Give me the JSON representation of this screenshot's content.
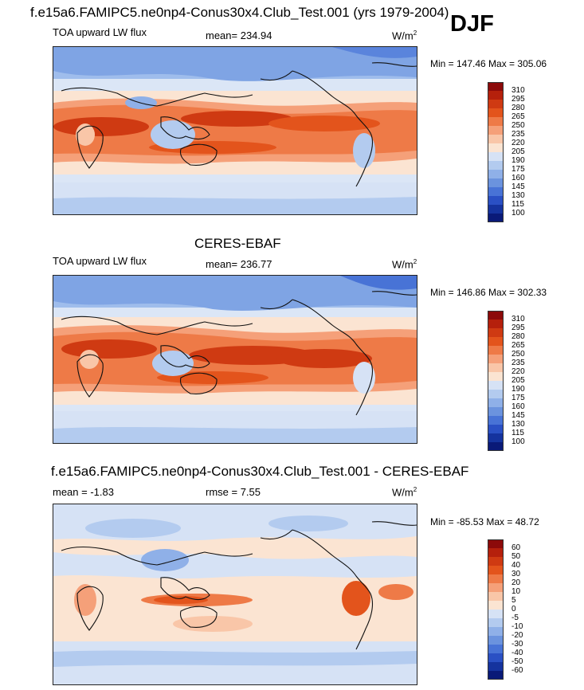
{
  "header": {
    "title": "f.e15a6.FAMIPC5.ne0np4-Conus30x4.Club_Test.001 (yrs 1979-2004)",
    "season": "DJF"
  },
  "panels": [
    {
      "id": "model",
      "title": "",
      "var": "TOA upward LW flux",
      "stat_label": "mean= 234.94",
      "stat2_label": "",
      "units": "W/m",
      "units_sup": "2",
      "minmax": "Min = 147.46 Max = 305.06"
    },
    {
      "id": "obs",
      "title": "CERES-EBAF",
      "var": "TOA upward LW flux",
      "stat_label": "mean= 236.77",
      "stat2_label": "",
      "units": "W/m",
      "units_sup": "2",
      "minmax": "Min = 146.86 Max = 302.33"
    },
    {
      "id": "diff",
      "title": "f.e15a6.FAMIPC5.ne0np4-Conus30x4.Club_Test.001 - CERES-EBAF",
      "var": "",
      "stat_label": "mean =  -1.83",
      "stat2_label": "rmse =   7.55",
      "units": "W/m",
      "units_sup": "2",
      "minmax": "Min = -85.53 Max =  48.72"
    }
  ],
  "chart_data": [
    {
      "type": "heatmap",
      "title": "TOA upward LW flux (model)",
      "mean": 234.94,
      "min": 147.46,
      "max": 305.06,
      "units": "W/m2",
      "colorbar_levels": [
        310,
        295,
        280,
        265,
        250,
        235,
        220,
        205,
        190,
        175,
        160,
        145,
        130,
        115,
        100
      ],
      "colorbar_colors": [
        "#8c0a0a",
        "#b5200c",
        "#cf3a12",
        "#e3541c",
        "#ee7a47",
        "#f5a079",
        "#f9c6a8",
        "#fbe4d2",
        "#d6e2f5",
        "#b3cbef",
        "#8fb0e8",
        "#6b93de",
        "#4873d6",
        "#2a50c4",
        "#15339e",
        "#0a1a78"
      ]
    },
    {
      "type": "heatmap",
      "title": "TOA upward LW flux (CERES-EBAF)",
      "mean": 236.77,
      "min": 146.86,
      "max": 302.33,
      "units": "W/m2",
      "colorbar_levels": [
        310,
        295,
        280,
        265,
        250,
        235,
        220,
        205,
        190,
        175,
        160,
        145,
        130,
        115,
        100
      ],
      "colorbar_colors": [
        "#8c0a0a",
        "#b5200c",
        "#cf3a12",
        "#e3541c",
        "#ee7a47",
        "#f5a079",
        "#f9c6a8",
        "#fbe4d2",
        "#d6e2f5",
        "#b3cbef",
        "#8fb0e8",
        "#6b93de",
        "#4873d6",
        "#2a50c4",
        "#15339e",
        "#0a1a78"
      ]
    },
    {
      "type": "heatmap",
      "title": "Model - CERES-EBAF difference",
      "mean": -1.83,
      "rmse": 7.55,
      "min": -85.53,
      "max": 48.72,
      "units": "W/m2",
      "colorbar_levels": [
        60,
        50,
        40,
        30,
        20,
        10,
        5,
        0,
        -5,
        -10,
        -20,
        -30,
        -40,
        -50,
        -60
      ],
      "colorbar_colors": [
        "#8c0a0a",
        "#b5200c",
        "#cf3a12",
        "#e3541c",
        "#ee7a47",
        "#f5a079",
        "#f9c6a8",
        "#fbe4d2",
        "#d6e2f5",
        "#b3cbef",
        "#8fb0e8",
        "#6b93de",
        "#4873d6",
        "#2a50c4",
        "#15339e",
        "#0a1a78"
      ]
    }
  ]
}
